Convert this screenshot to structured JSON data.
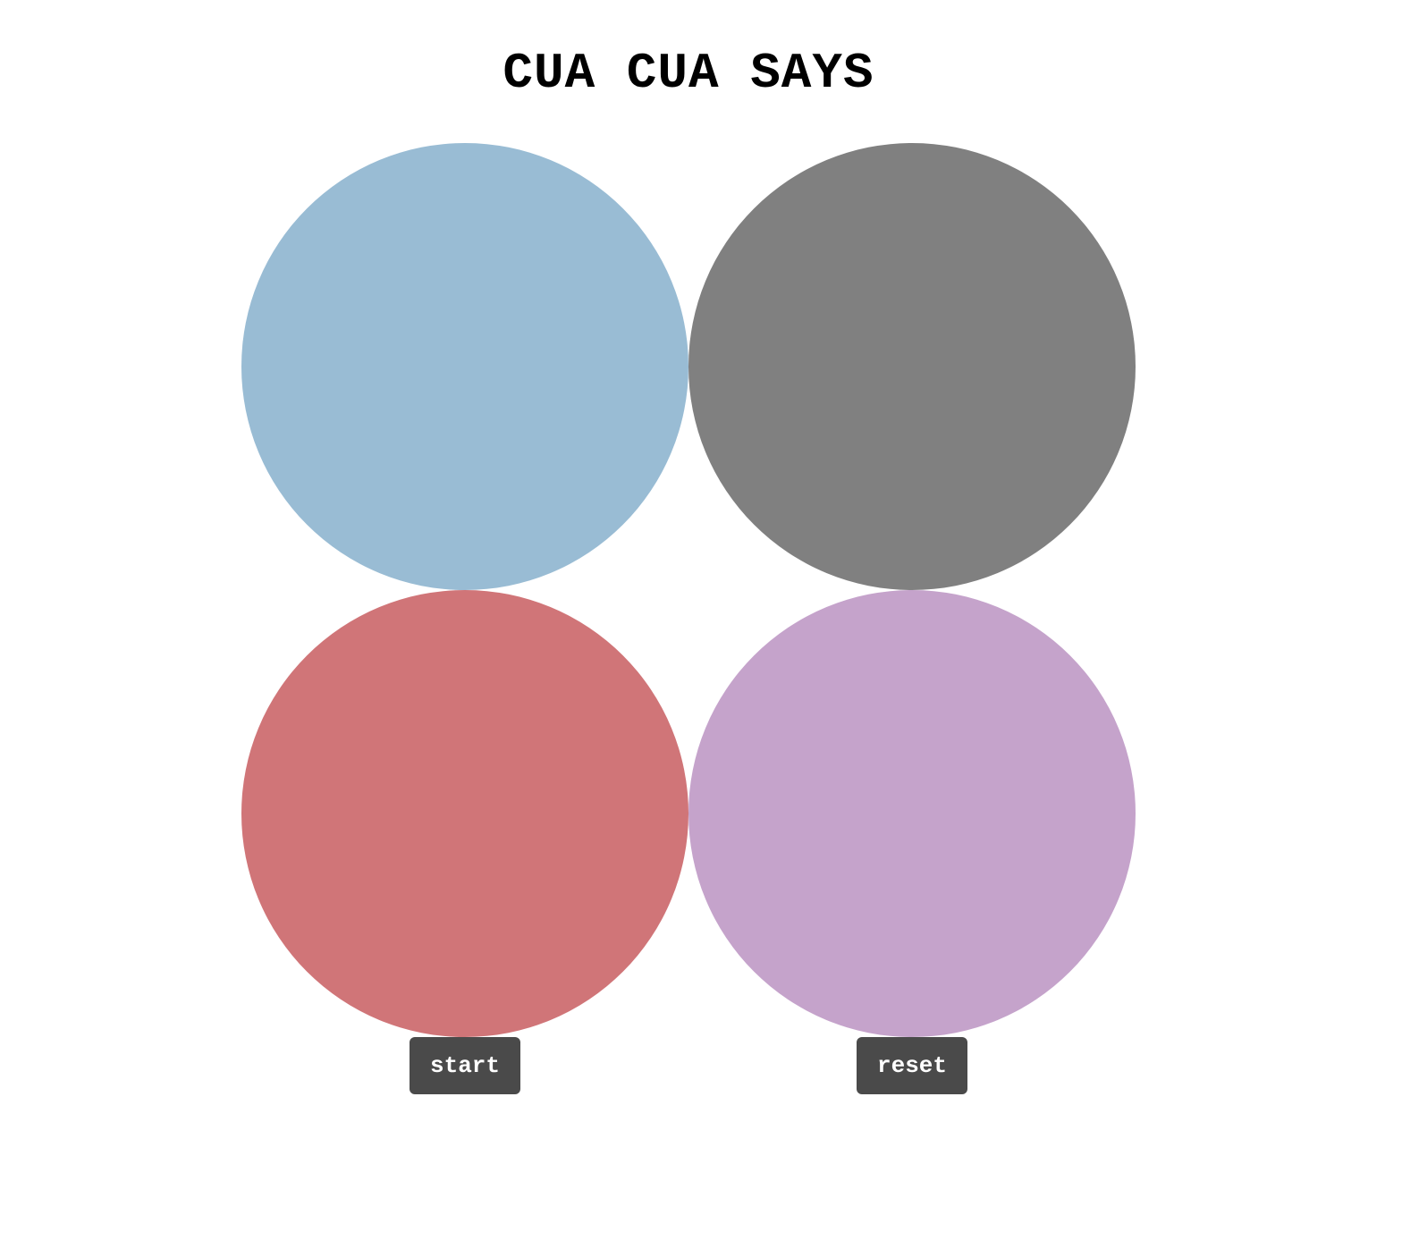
{
  "game": {
    "title": "CUA CUA SAYS"
  },
  "pads": [
    {
      "id": "top-left",
      "color": "#99bcd4"
    },
    {
      "id": "top-right",
      "color": "#808080"
    },
    {
      "id": "bottom-left",
      "color": "#d07578"
    },
    {
      "id": "bottom-right",
      "color": "#c5a3cb"
    }
  ],
  "controls": {
    "start_label": "start",
    "reset_label": "reset",
    "button_color": "#4a4a4a"
  }
}
